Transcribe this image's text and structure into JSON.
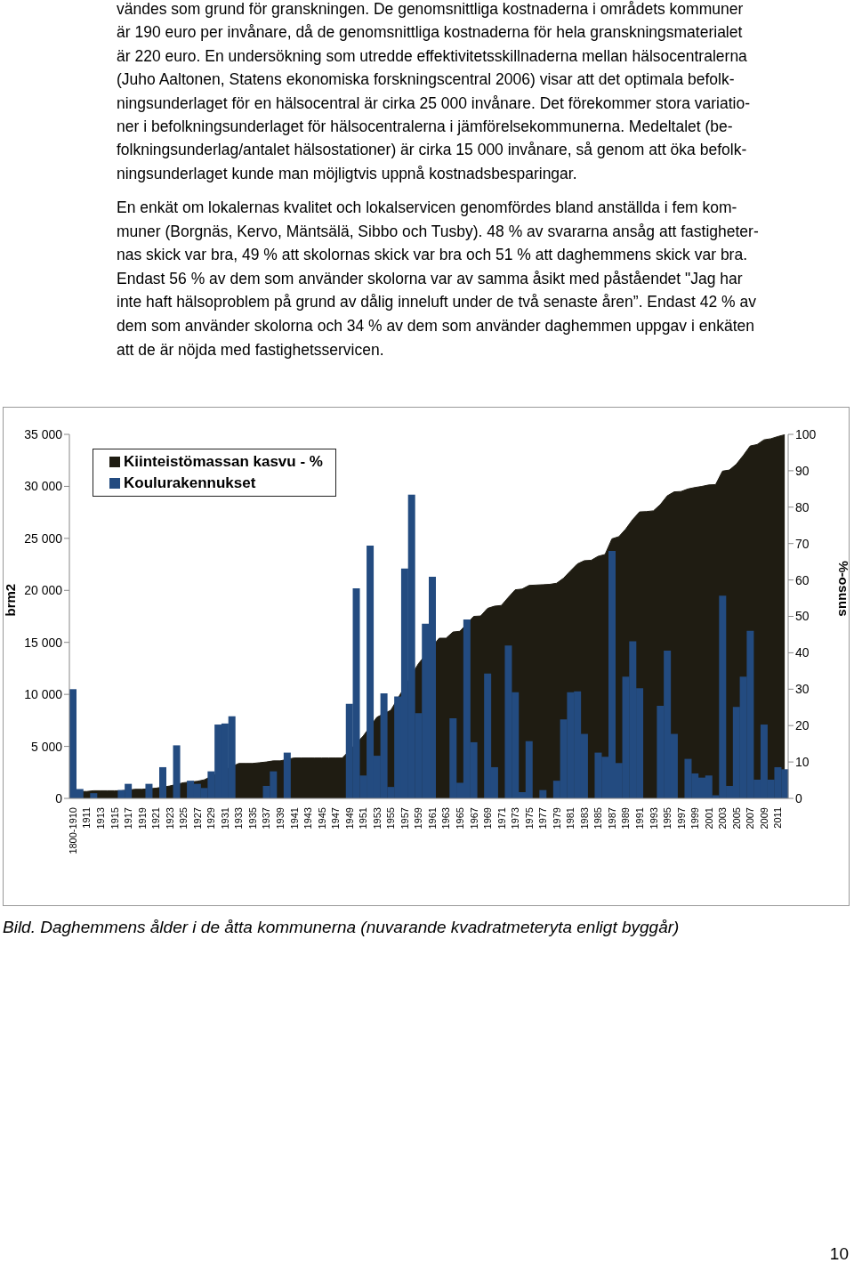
{
  "chart_data": {
    "type": "bar",
    "annotations": [
      "vändes som grund för granskningen. De genomsnittliga kostnaderna i områdets kommuner\när 190 euro per invånare, då de genomsnittliga kostnaderna för hela granskningsmaterialet\när 220 euro. En undersökning som utredde effektivitetsskillnaderna mellan hälsocentralerna\n(Juho Aaltonen, Statens ekonomiska forskningscentral 2006) visar att det optimala befolk-\nningsunderlaget för en hälsocentral är cirka 25 000 invånare. Det förekommer stora variatio-\nner i befolkningsunderlaget för hälsocentralerna i jämförelsekommunerna. Medeltalet (be-\nfolkningsunderlag/antalet hälsostationer) är cirka 15 000 invånare, så genom att öka befolk-\nningsunderlaget kunde man möjligtvis uppnå kostnadsbesparingar.",
      "En enkät om lokalernas kvalitet och lokalservicen genomfördes bland anställda i fem kom-\nmuner (Borgnäs, Kervo, Mäntsälä, Sibbo och Tusby). 48 % av svararna ansåg att fastigheter-\nnas skick var bra, 49 % att skolornas skick var bra och 51 % att daghemmens skick var bra.\nEndast 56 % av dem som använder skolorna var av samma åsikt med påståendet \"Jag har\ninte haft hälsoproblem på grund av dålig inneluft under de två senaste åren”. Endast 42 % av\ndem som använder skolorna och 34 % av dem som använder daghemmen uppgav i enkäten\natt de är nöjda med fastighetsservicen.",
      "Bild. Daghemmens ålder i de åtta kommunerna (nuvarande kvadratmeteryta enligt byggår)",
      "10"
    ],
    "ylabel": "brm2",
    "y2label": "%-osuus",
    "categories": [
      "1800-1910",
      null,
      "1911",
      null,
      "1913",
      null,
      "1915",
      null,
      "1917",
      null,
      "1919",
      null,
      "1921",
      null,
      "1923",
      null,
      "1925",
      null,
      "1927",
      null,
      "1929",
      null,
      "1931",
      null,
      "1933",
      null,
      "1935",
      null,
      "1937",
      null,
      "1939",
      null,
      "1941",
      null,
      "1943",
      null,
      "1945",
      null,
      "1947",
      null,
      "1949",
      null,
      "1951",
      null,
      "1953",
      null,
      "1955",
      null,
      "1957",
      null,
      "1959",
      null,
      "1961",
      null,
      "1963",
      null,
      "1965",
      null,
      "1967",
      null,
      "1969",
      null,
      "1971",
      null,
      "1973",
      null,
      "1975",
      null,
      "1977",
      null,
      "1979",
      null,
      "1981",
      null,
      "1983",
      null,
      "1985",
      null,
      "1987",
      null,
      "1989",
      null,
      "1991",
      null,
      "1993",
      null,
      "1995",
      null,
      "1997",
      null,
      "1999",
      null,
      "2001",
      null,
      "2003",
      null,
      "2005",
      null,
      "2007",
      null,
      "2009",
      null,
      "2011",
      null
    ],
    "series": [
      {
        "name": "Kiinteistömassan kasvu - %",
        "type": "area",
        "axis": "y2",
        "color": "#1f1c12",
        "values": [
          null,
          1.9,
          1.9,
          2.1,
          2.1,
          2.1,
          2.1,
          2.1,
          null,
          2.5,
          2.5,
          null,
          2.8,
          null,
          3.4,
          null,
          4.3,
          null,
          4.7,
          5.1,
          null,
          null,
          null,
          null,
          9.6,
          9.6,
          9.6,
          9.8,
          10.0,
          10.3,
          10.3,
          null,
          11.1,
          11.1,
          11.1,
          11.1,
          11.1,
          11.1,
          11.1,
          11.1,
          null,
          null,
          17.1,
          null,
          22.3,
          null,
          24.2,
          null,
          null,
          null,
          37.0,
          null,
          null,
          44.0,
          44.0,
          45.7,
          45.9,
          null,
          50.0,
          50.1,
          52.2,
          52.8,
          53.0,
          55.2,
          57.3,
          57.5,
          58.5,
          58.6,
          58.7,
          58.8,
          59.1,
          60.5,
          62.5,
          64.4,
          65.3,
          65.4,
          66.5,
          67.0,
          71.3,
          71.9,
          74.0,
          76.6,
          78.7,
          78.8,
          79.0,
          80.7,
          83.1,
          84.2,
          84.3,
          85.0,
          85.4,
          85.7,
          86.1,
          86.2,
          89.9,
          90.2,
          91.8,
          94.2,
          96.8,
          97.2,
          98.5,
          98.8,
          99.4,
          99.9
        ]
      },
      {
        "name": "Koulurakennukset",
        "color": "#234b80",
        "values": [
          10500,
          900,
          0,
          500,
          0,
          0,
          0,
          800,
          1400,
          0,
          0,
          1400,
          0,
          3000,
          0,
          5100,
          0,
          1700,
          1400,
          1000,
          2600,
          7100,
          7200,
          7900,
          0,
          0,
          0,
          0,
          1200,
          2600,
          0,
          4400,
          0,
          0,
          0,
          0,
          0,
          0,
          0,
          0,
          9100,
          20200,
          2200,
          24300,
          4100,
          10100,
          1100,
          9800,
          22100,
          29200,
          8200,
          16800,
          21300,
          0,
          0,
          7700,
          1500,
          17200,
          5400,
          0,
          12000,
          3000,
          0,
          14700,
          10200,
          600,
          5500,
          0,
          800,
          0,
          1700,
          7600,
          10200,
          10300,
          6200,
          0,
          4400,
          4000,
          23800,
          3400,
          11700,
          15100,
          10600,
          0,
          0,
          8900,
          14200,
          6200,
          0,
          3800,
          2400,
          2000,
          2200,
          300,
          19500,
          1200,
          8800,
          11700,
          16100,
          1800,
          7100,
          1800,
          3000,
          2800
        ]
      }
    ],
    "ylim": [
      0,
      35000
    ],
    "yticks": [
      0,
      {
        "value": 5000,
        "label": "5 000"
      },
      {
        "value": 10000,
        "label": "10 000"
      },
      {
        "value": 15000,
        "label": "15 000"
      },
      {
        "value": 20000,
        "label": "20 000"
      },
      {
        "value": 25000,
        "label": "25 000"
      },
      {
        "value": 30000,
        "label": "30 000"
      },
      {
        "value": 35000,
        "label": "35 000"
      }
    ],
    "y2lim": [
      0,
      100
    ],
    "y2ticks": [
      0,
      10,
      20,
      30,
      40,
      50,
      60,
      70,
      80,
      90,
      100
    ],
    "legend": "top left"
  }
}
